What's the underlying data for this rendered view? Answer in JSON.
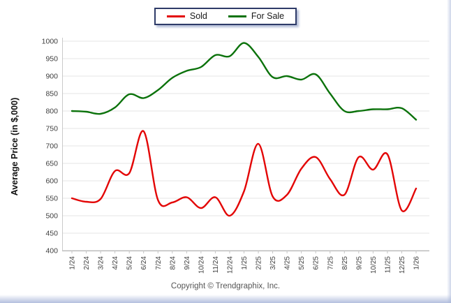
{
  "legend": {
    "items": [
      {
        "label": "Sold",
        "color": "#e30505"
      },
      {
        "label": "For Sale",
        "color": "#0b720b"
      }
    ]
  },
  "footer": {
    "copyright": "Copyright © Trendgraphix, Inc."
  },
  "chart_data": {
    "type": "line",
    "title": "",
    "xlabel": "",
    "ylabel": "Average Price (in $,000)",
    "ylim": [
      400,
      1000
    ],
    "ytick_step": 50,
    "yticks": [
      400,
      450,
      500,
      550,
      600,
      650,
      700,
      750,
      800,
      850,
      900,
      950,
      1000
    ],
    "grid": "horizontal",
    "legend_position": "top-center",
    "line_style": "smooth-spline",
    "categories": [
      "1/24",
      "2/24",
      "3/24",
      "4/24",
      "5/24",
      "6/24",
      "7/24",
      "8/24",
      "9/24",
      "10/24",
      "11/24",
      "12/24",
      "1/25",
      "2/25",
      "3/25",
      "4/25",
      "5/25",
      "6/25",
      "7/25",
      "8/25",
      "9/25",
      "10/25",
      "11/25",
      "12/25",
      "1/26"
    ],
    "series": [
      {
        "name": "Sold",
        "color": "#e30505",
        "values": [
          550,
          540,
          548,
          628,
          622,
          742,
          545,
          538,
          553,
          522,
          553,
          500,
          570,
          706,
          555,
          560,
          635,
          668,
          605,
          560,
          668,
          632,
          676,
          515,
          578
        ]
      },
      {
        "name": "For Sale",
        "color": "#0b720b",
        "values": [
          800,
          798,
          792,
          810,
          848,
          837,
          860,
          895,
          915,
          926,
          960,
          957,
          995,
          955,
          897,
          900,
          890,
          905,
          850,
          800,
          800,
          805,
          805,
          808,
          775
        ]
      }
    ]
  }
}
